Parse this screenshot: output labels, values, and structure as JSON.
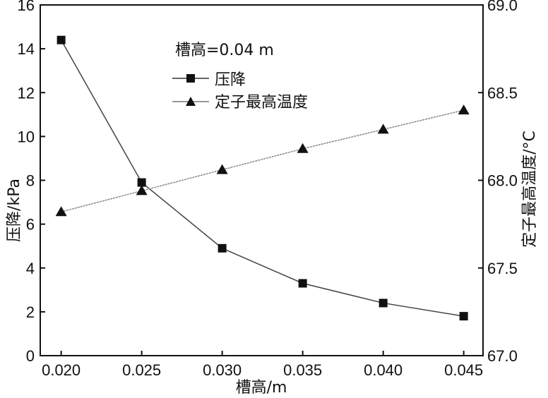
{
  "chart_data": {
    "type": "line",
    "title": "",
    "annotation": "槽高=0.04 m",
    "xlabel": "槽高/m",
    "ylabel_left": "压降/kPa",
    "ylabel_right": "定子最高温度/°C",
    "x": [
      0.02,
      0.025,
      0.03,
      0.035,
      0.04,
      0.045
    ],
    "x_ticks": [
      "0.020",
      "0.025",
      "0.030",
      "0.035",
      "0.040",
      "0.045"
    ],
    "xlim": [
      0.0187,
      0.0462
    ],
    "ylim_left": [
      0,
      16
    ],
    "y_ticks_left": [
      "0",
      "2",
      "4",
      "6",
      "8",
      "10",
      "12",
      "14",
      "16"
    ],
    "ylim_right": [
      67.0,
      69.0
    ],
    "y_ticks_right": [
      "67.0",
      "67.5",
      "68.0",
      "68.5",
      "69.0"
    ],
    "grid": false,
    "legend_position": "top-center",
    "series": [
      {
        "name": "压降",
        "axis": "left",
        "marker": "square",
        "values": [
          14.4,
          7.9,
          4.9,
          3.3,
          2.4,
          1.8
        ]
      },
      {
        "name": "定子最高温度",
        "axis": "right",
        "marker": "triangle",
        "values": [
          67.82,
          67.94,
          68.06,
          68.18,
          68.29,
          68.4
        ]
      }
    ]
  }
}
